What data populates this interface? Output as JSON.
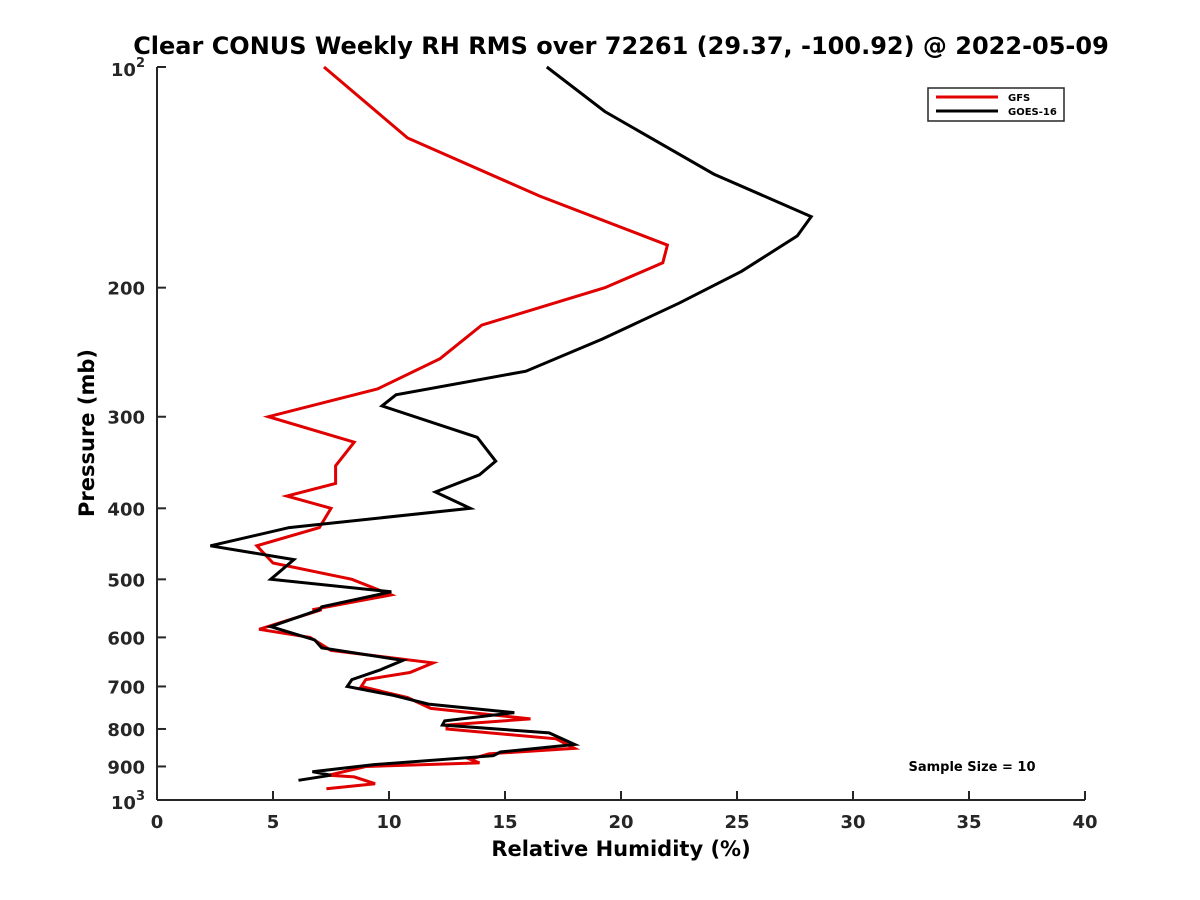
{
  "chart_data": {
    "type": "line",
    "title": "Clear CONUS Weekly RH RMS over 72261 (29.37, -100.92) @ 2022-05-09",
    "xlabel": "Relative Humidity (%)",
    "ylabel": "Pressure (mb)",
    "xlim": [
      0,
      40
    ],
    "ylim": [
      100,
      1000
    ],
    "y_scale": "log",
    "y_reversed": true,
    "x_ticks": [
      0,
      5,
      10,
      15,
      20,
      25,
      30,
      35,
      40
    ],
    "y_ticks": [
      {
        "value": 200,
        "label": "200"
      },
      {
        "value": 300,
        "label": "300"
      },
      {
        "value": 400,
        "label": "400"
      },
      {
        "value": 500,
        "label": "500"
      },
      {
        "value": 600,
        "label": "600"
      },
      {
        "value": 700,
        "label": "700"
      },
      {
        "value": 800,
        "label": "800"
      },
      {
        "value": 900,
        "label": "900"
      }
    ],
    "y_end_labels": {
      "top_base": "10",
      "top_exp": "2",
      "bottom_base": "10",
      "bottom_exp": "3"
    },
    "grid": false,
    "legend_position": "top-right",
    "series": [
      {
        "name": "GFS",
        "color": "#e00000",
        "points": [
          [
            7.2,
            100
          ],
          [
            10.8,
            125
          ],
          [
            16.5,
            150
          ],
          [
            22.0,
            175
          ],
          [
            21.8,
            185
          ],
          [
            19.3,
            200
          ],
          [
            14.0,
            225
          ],
          [
            12.2,
            250
          ],
          [
            9.5,
            275
          ],
          [
            4.8,
            300
          ],
          [
            8.5,
            325
          ],
          [
            7.7,
            350
          ],
          [
            7.7,
            370
          ],
          [
            5.6,
            385
          ],
          [
            7.5,
            400
          ],
          [
            7.0,
            425
          ],
          [
            4.3,
            450
          ],
          [
            5.0,
            475
          ],
          [
            8.4,
            500
          ],
          [
            10.1,
            525
          ],
          [
            6.7,
            550
          ],
          [
            7.1,
            550
          ],
          [
            4.4,
            585
          ],
          [
            6.6,
            600
          ],
          [
            7.5,
            625
          ],
          [
            11.9,
            650
          ],
          [
            10.9,
            670
          ],
          [
            9.0,
            685
          ],
          [
            8.8,
            700
          ],
          [
            10.8,
            725
          ],
          [
            11.8,
            750
          ],
          [
            16.1,
            775
          ],
          [
            12.5,
            790
          ],
          [
            12.5,
            800
          ],
          [
            17.2,
            825
          ],
          [
            18.0,
            850
          ],
          [
            14.3,
            865
          ],
          [
            13.5,
            880
          ],
          [
            13.9,
            890
          ],
          [
            9.0,
            900
          ],
          [
            7.4,
            925
          ],
          [
            8.5,
            930
          ],
          [
            9.4,
            950
          ],
          [
            7.3,
            965
          ]
        ]
      },
      {
        "name": "GOES-16",
        "color": "#000000",
        "points": [
          [
            16.8,
            100
          ],
          [
            19.3,
            115
          ],
          [
            24.0,
            140
          ],
          [
            28.2,
            160
          ],
          [
            27.6,
            170
          ],
          [
            25.2,
            190
          ],
          [
            22.5,
            210
          ],
          [
            19.2,
            235
          ],
          [
            15.9,
            260
          ],
          [
            10.3,
            280
          ],
          [
            9.7,
            290
          ],
          [
            13.8,
            320
          ],
          [
            14.6,
            345
          ],
          [
            13.9,
            360
          ],
          [
            12.0,
            380
          ],
          [
            13.5,
            400
          ],
          [
            5.7,
            425
          ],
          [
            2.3,
            450
          ],
          [
            5.9,
            470
          ],
          [
            4.9,
            500
          ],
          [
            10.1,
            520
          ],
          [
            7.1,
            545
          ],
          [
            7.0,
            550
          ],
          [
            4.9,
            580
          ],
          [
            6.8,
            605
          ],
          [
            7.1,
            620
          ],
          [
            10.6,
            645
          ],
          [
            9.6,
            665
          ],
          [
            8.4,
            685
          ],
          [
            8.2,
            700
          ],
          [
            10.2,
            720
          ],
          [
            11.7,
            740
          ],
          [
            15.4,
            760
          ],
          [
            12.4,
            780
          ],
          [
            12.3,
            790
          ],
          [
            16.9,
            810
          ],
          [
            18.0,
            840
          ],
          [
            14.8,
            860
          ],
          [
            14.5,
            870
          ],
          [
            9.3,
            895
          ],
          [
            6.7,
            915
          ],
          [
            7.5,
            925
          ],
          [
            6.1,
            940
          ]
        ]
      }
    ],
    "annotation": "Sample Size = 10"
  }
}
